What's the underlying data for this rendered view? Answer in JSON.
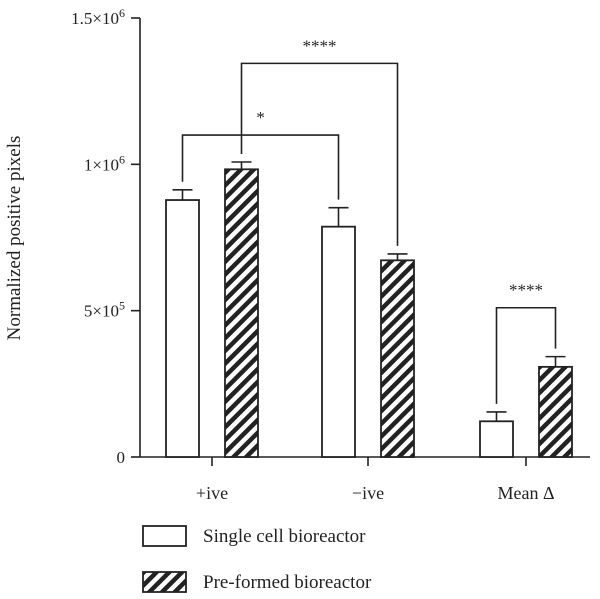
{
  "chart_data": {
    "type": "bar",
    "ylabel": "Normalized positive pixels",
    "ylim": [
      0,
      1500000
    ],
    "yticks": [
      {
        "value": 0,
        "label": "0",
        "sup": ""
      },
      {
        "value": 500000,
        "label": "5×10",
        "sup": "5"
      },
      {
        "value": 1000000,
        "label": "1×10",
        "sup": "6"
      },
      {
        "value": 1500000,
        "label": "1.5×10",
        "sup": "6"
      }
    ],
    "categories": [
      "+ive",
      "−ive",
      "Mean Δ"
    ],
    "series": [
      {
        "name": "Single cell bioreactor",
        "pattern": "none",
        "values": [
          878000,
          787000,
          122000
        ],
        "errors": [
          35000,
          65000,
          32000
        ]
      },
      {
        "name": "Pre-formed bioreactor",
        "pattern": "hatch",
        "values": [
          983000,
          672000,
          308000
        ],
        "errors": [
          25000,
          22000,
          35000
        ]
      }
    ],
    "significance": [
      {
        "label": "*",
        "from": [
          0,
          0
        ],
        "to": [
          1,
          0
        ],
        "y": 1100000
      },
      {
        "label": "****",
        "from": [
          0,
          1
        ],
        "to": [
          1,
          1
        ],
        "y": 1345000
      },
      {
        "label": "****",
        "from": [
          2,
          0
        ],
        "to": [
          2,
          1
        ],
        "y": 510000
      }
    ],
    "legend_position": "bottom-left",
    "grid": false,
    "colors": {
      "stroke": "#222222",
      "fill": "#ffffff"
    }
  }
}
